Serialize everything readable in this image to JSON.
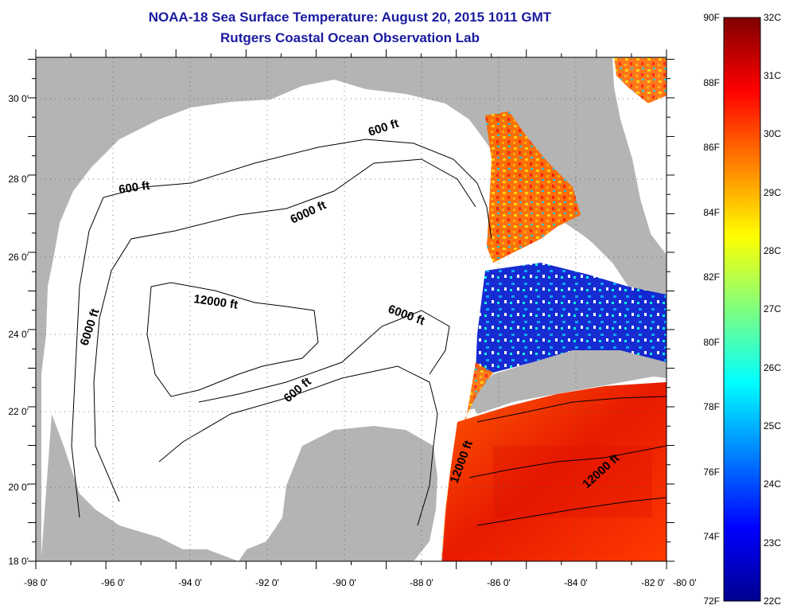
{
  "title": "NOAA-18 Sea Surface Temperature:  August 20, 2015 1011 GMT",
  "subtitle": "Rutgers Coastal Ocean Observation Lab",
  "map": {
    "lon_ticks": [
      "-98 0'",
      "-96 0'",
      "-94 0'",
      "-92 0'",
      "-90 0'",
      "-88 0'",
      "-86 0'",
      "-84 0'",
      "-82 0'",
      "-80 0'"
    ],
    "lat_ticks": [
      "30 0'",
      "28 0'",
      "26 0'",
      "24 0'",
      "22 0'",
      "20 0'",
      "18 0'"
    ],
    "contour_labels": [
      "600 ft",
      "600 ft",
      "6000 ft",
      "6000 ft",
      "12000 ft",
      "6000 ft",
      "600 ft",
      "12000 ft",
      "12000 ft"
    ],
    "colors": {
      "land": "#b4b4b4",
      "ocean_no_data": "#ffffff"
    }
  },
  "colorbar": {
    "f_labels": [
      "90F",
      "88F",
      "86F",
      "84F",
      "82F",
      "80F",
      "78F",
      "76F",
      "74F",
      "72F"
    ],
    "c_labels": [
      "32C",
      "31C",
      "30C",
      "29C",
      "28C",
      "27C",
      "26C",
      "25C",
      "24C",
      "23C",
      "22C"
    ]
  }
}
